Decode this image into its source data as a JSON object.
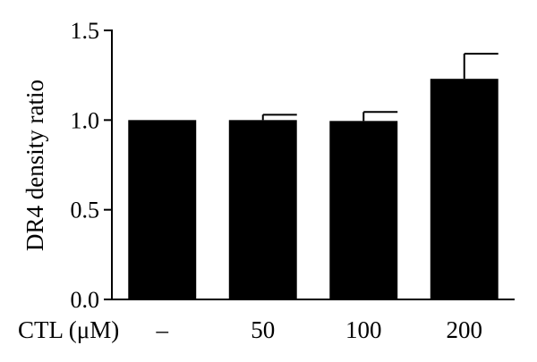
{
  "chart_data": {
    "type": "bar",
    "title": "",
    "xlabel": "CTL (μM)",
    "ylabel": "DR4 density ratio",
    "categories": [
      "–",
      "50",
      "100",
      "200"
    ],
    "values": [
      1.0,
      1.0,
      0.995,
      1.23
    ],
    "errors": [
      0.0,
      0.03,
      0.05,
      0.14
    ],
    "ylim": [
      0,
      1.5
    ],
    "yticks": [
      "0.0",
      "0.5",
      "1.0",
      "1.5"
    ],
    "ytick_values": [
      0,
      0.5,
      1.0,
      1.5
    ],
    "grid": false,
    "bar_color": "#000000"
  }
}
